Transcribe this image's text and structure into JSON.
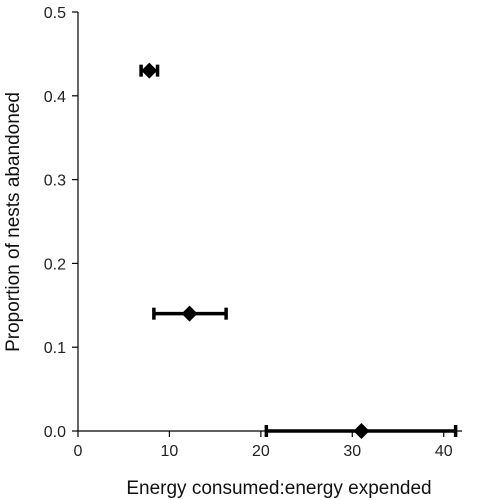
{
  "chart_data": {
    "type": "scatter",
    "title": "",
    "xlabel": "Energy consumed:energy expended",
    "ylabel": "Proportion of nests abandoned",
    "xlim": [
      0,
      42
    ],
    "ylim": [
      0,
      0.5
    ],
    "x_ticks": [
      0,
      10,
      20,
      30,
      40
    ],
    "y_ticks": [
      0.0,
      0.1,
      0.2,
      0.3,
      0.4,
      0.5
    ],
    "x_tick_labels": [
      "0",
      "10",
      "20",
      "30",
      "40"
    ],
    "y_tick_labels": [
      "0.0",
      "0.1",
      "0.2",
      "0.3",
      "0.4",
      "0.5"
    ],
    "grid": false,
    "marker": "diamond",
    "points": [
      {
        "x": 7.8,
        "y": 0.43,
        "x_low": 6.9,
        "x_high": 8.7
      },
      {
        "x": 12.2,
        "y": 0.14,
        "x_low": 8.3,
        "x_high": 16.2
      },
      {
        "x": 31.0,
        "y": 0.0,
        "x_low": 20.6,
        "x_high": 41.3
      }
    ],
    "color": "#000000"
  }
}
